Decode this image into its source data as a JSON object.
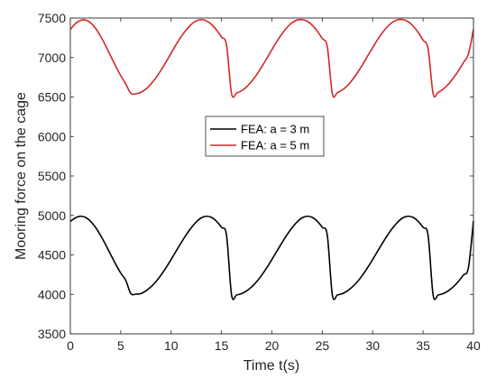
{
  "chart_data": {
    "type": "line",
    "xlabel": "Time t(s)",
    "ylabel": "Mooring force on the cage",
    "xlim": [
      0,
      40
    ],
    "ylim": [
      3500,
      7500
    ],
    "xticks": [
      0,
      5,
      10,
      15,
      20,
      25,
      30,
      35,
      40
    ],
    "yticks": [
      3500,
      4000,
      4500,
      5000,
      5500,
      6000,
      6500,
      7000,
      7500
    ],
    "grid": false,
    "legend_position": "center",
    "series": [
      {
        "name": "FEA: a = 3 m",
        "color": "#000000",
        "x": [
          0,
          0.5,
          1,
          1.5,
          2,
          2.5,
          3,
          3.5,
          4,
          4.5,
          5,
          5.5,
          6,
          6.5,
          7,
          7.5,
          8,
          8.5,
          9,
          9.5,
          10,
          10.5,
          11,
          11.5,
          12,
          12.5,
          13,
          13.5,
          14,
          14.5,
          15,
          15.5,
          16,
          16.5,
          17,
          17.5,
          18,
          18.5,
          19,
          19.5,
          20,
          20.5,
          21,
          21.5,
          22,
          22.5,
          23,
          23.5,
          24,
          24.5,
          25,
          25.5,
          26,
          26.5,
          27,
          27.5,
          28,
          28.5,
          29,
          29.5,
          30,
          30.5,
          31,
          31.5,
          32,
          32.5,
          33,
          33.5,
          34,
          34.5,
          35,
          35.5,
          36,
          36.5,
          37,
          37.5,
          38,
          38.5,
          39,
          39.5,
          40
        ],
        "values": [
          4924,
          4970,
          4990,
          4976,
          4927,
          4849,
          4747,
          4630,
          4505,
          4382,
          4270,
          4177,
          4010,
          4003,
          4010,
          4045,
          4096,
          4163,
          4245,
          4339,
          4442,
          4549,
          4655,
          4755,
          4844,
          4918,
          4970,
          4990,
          4976,
          4927,
          4849,
          4747,
          3990,
          3993,
          4010,
          4045,
          4096,
          4163,
          4245,
          4339,
          4442,
          4549,
          4655,
          4755,
          4844,
          4918,
          4970,
          4990,
          4976,
          4927,
          4849,
          4747,
          3990,
          3993,
          4010,
          4045,
          4096,
          4163,
          4245,
          4339,
          4442,
          4549,
          4655,
          4755,
          4844,
          4918,
          4970,
          4990,
          4976,
          4927,
          4849,
          4747,
          3990,
          3993,
          4010,
          4045,
          4096,
          4163,
          4245,
          4339,
          4930
        ]
      },
      {
        "name": "FEA: a = 5 m",
        "color": "#d62728",
        "x": [
          0,
          0.5,
          1,
          1.5,
          2,
          2.5,
          3,
          3.5,
          4,
          4.5,
          5,
          5.5,
          6,
          6.5,
          7,
          7.5,
          8,
          8.5,
          9,
          9.5,
          10,
          10.5,
          11,
          11.5,
          12,
          12.5,
          13,
          13.5,
          14,
          14.5,
          15,
          15.5,
          16,
          16.5,
          17,
          17.5,
          18,
          18.5,
          19,
          19.5,
          20,
          20.5,
          21,
          21.5,
          22,
          22.5,
          23,
          23.5,
          24,
          24.5,
          25,
          25.5,
          26,
          26.5,
          27,
          27.5,
          28,
          28.5,
          29,
          29.5,
          30,
          30.5,
          31,
          31.5,
          32,
          32.5,
          33,
          33.5,
          34,
          34.5,
          35,
          35.5,
          36,
          36.5,
          37,
          37.5,
          38,
          38.5,
          39,
          39.5,
          40
        ],
        "values": [
          7355,
          7430,
          7470,
          7475,
          7440,
          7370,
          7270,
          7150,
          7020,
          6890,
          6770,
          6665,
          6545,
          6540,
          6560,
          6600,
          6665,
          6745,
          6840,
          6945,
          7055,
          7165,
          7265,
          7350,
          7420,
          7465,
          7480,
          7465,
          7420,
          7350,
          7260,
          7155,
          6540,
          6550,
          6580,
          6630,
          6700,
          6785,
          6885,
          6990,
          7100,
          7205,
          7300,
          7380,
          7440,
          7475,
          7480,
          7460,
          7410,
          7335,
          7240,
          7135,
          6540,
          6555,
          6590,
          6645,
          6720,
          6810,
          6910,
          7020,
          7125,
          7230,
          7320,
          7395,
          7450,
          7480,
          7480,
          7455,
          7400,
          7320,
          7220,
          7110,
          6540,
          6560,
          6600,
          6660,
          6740,
          6830,
          6935,
          7045,
          7355
        ]
      }
    ]
  }
}
